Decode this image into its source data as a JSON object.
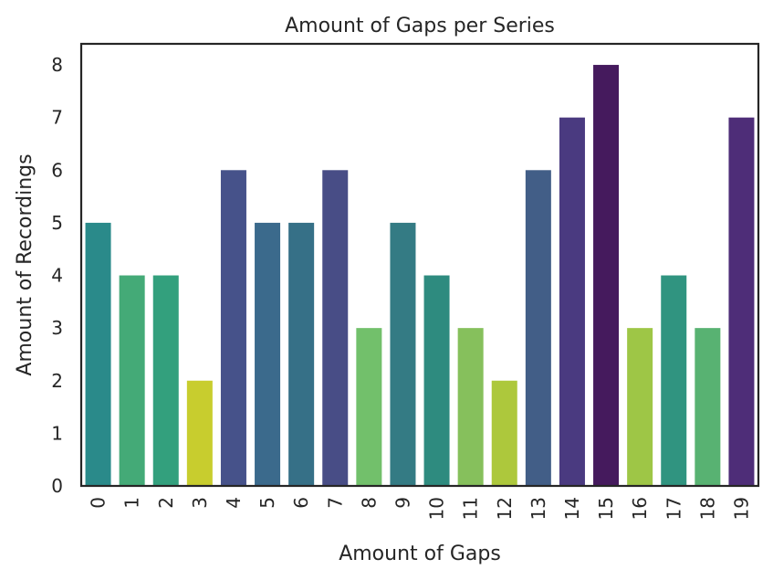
{
  "chart_data": {
    "type": "bar",
    "title": "Amount of Gaps per Series",
    "xlabel": "Amount of Gaps",
    "ylabel": "Amount of Recordings",
    "categories": [
      "0",
      "1",
      "2",
      "3",
      "4",
      "5",
      "6",
      "7",
      "8",
      "9",
      "10",
      "11",
      "12",
      "13",
      "14",
      "15",
      "16",
      "17",
      "18",
      "19"
    ],
    "values": [
      5,
      4,
      4,
      2,
      6,
      5,
      5,
      6,
      3,
      5,
      4,
      3,
      2,
      6,
      7,
      8,
      3,
      4,
      3,
      7
    ],
    "bar_colors": [
      "#2a8a8a",
      "#44aa77",
      "#33a07d",
      "#c8cd2e",
      "#46528a",
      "#3b6a8c",
      "#367087",
      "#484d86",
      "#72c06b",
      "#347b84",
      "#2e8b7f",
      "#86c05c",
      "#adc83c",
      "#425e87",
      "#4a3a80",
      "#451a5d",
      "#9ec646",
      "#309480",
      "#58b272",
      "#4e2d78"
    ],
    "ylim": [
      0,
      8.4
    ],
    "yticks": [
      0,
      1,
      2,
      3,
      4,
      5,
      6,
      7,
      8
    ],
    "grid": false,
    "legend": "none"
  }
}
